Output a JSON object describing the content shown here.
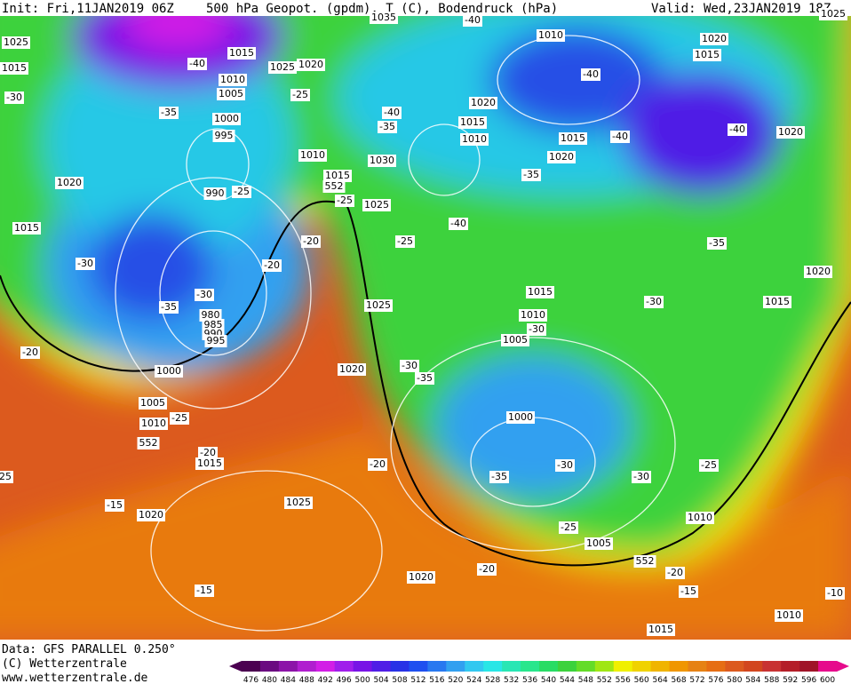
{
  "header": {
    "init": "Init: Fri,11JAN2019 06Z",
    "title": "500 hPa Geopot. (gpdm), T (C), Bodendruck (hPa)",
    "valid": "Valid: Wed,23JAN2019 18Z"
  },
  "footer": {
    "data": "Data: GFS PARALLEL 0.250°",
    "copyright": "(C) Wetterzentrale",
    "url": "www.wetterzentrale.de"
  },
  "map": {
    "labels": [
      "1025",
      "1015",
      "-30",
      "-40",
      "1015",
      "1025",
      "1020",
      "1010",
      "1005",
      "-25",
      "-35",
      "1000",
      "995",
      "1010",
      "1015",
      "552",
      "990",
      "-25",
      "1020",
      "1015",
      "-30",
      "-20",
      "-20",
      "-25",
      "1025",
      "1030",
      "-40",
      "-35",
      "1035",
      "-40",
      "1020",
      "1015",
      "1010",
      "1010",
      "-40",
      "1015",
      "-40",
      "1020",
      "-35",
      "1020",
      "1015",
      "-40",
      "1020",
      "-40",
      "-25",
      "-35",
      "1020",
      "1015",
      "-30",
      "1015",
      "1010",
      "-30",
      "1005",
      "-30",
      "-35",
      "980",
      "985",
      "990",
      "995",
      "-20",
      "1025",
      "1020",
      "1000",
      "-30",
      "-35",
      "1005",
      "1010",
      "-25",
      "552",
      "-20",
      "1015",
      "-20",
      "1000",
      "-30",
      "-35",
      "-30",
      "-25",
      "1025",
      "-15",
      "1020",
      "1010",
      "-25",
      "1005",
      "552",
      "-20",
      "1020",
      "-20",
      "-15",
      "-15",
      "-10",
      "1010",
      "1015",
      "25",
      "1025"
    ]
  },
  "colorbar": {
    "labels": [
      476,
      480,
      484,
      488,
      492,
      496,
      500,
      504,
      508,
      512,
      516,
      520,
      524,
      528,
      532,
      536,
      540,
      544,
      548,
      552,
      556,
      560,
      564,
      568,
      572,
      576,
      580,
      584,
      588,
      592,
      596,
      600
    ],
    "colors": [
      "#4b0050",
      "#6a0a80",
      "#8c14a8",
      "#b01ecf",
      "#d21ee6",
      "#a01eeb",
      "#7814e6",
      "#501ee6",
      "#2832e6",
      "#1e50f0",
      "#2878f0",
      "#32a0f0",
      "#32c8f0",
      "#28e6e6",
      "#28e6b4",
      "#28e68c",
      "#28dc64",
      "#3cd23c",
      "#64dc28",
      "#a0e614",
      "#f0f000",
      "#f0d200",
      "#f0b400",
      "#f09600",
      "#e68214",
      "#e66e14",
      "#dc5a1e",
      "#d2461e",
      "#c83232",
      "#b41e28",
      "#a01428",
      "#e60a8c"
    ]
  }
}
